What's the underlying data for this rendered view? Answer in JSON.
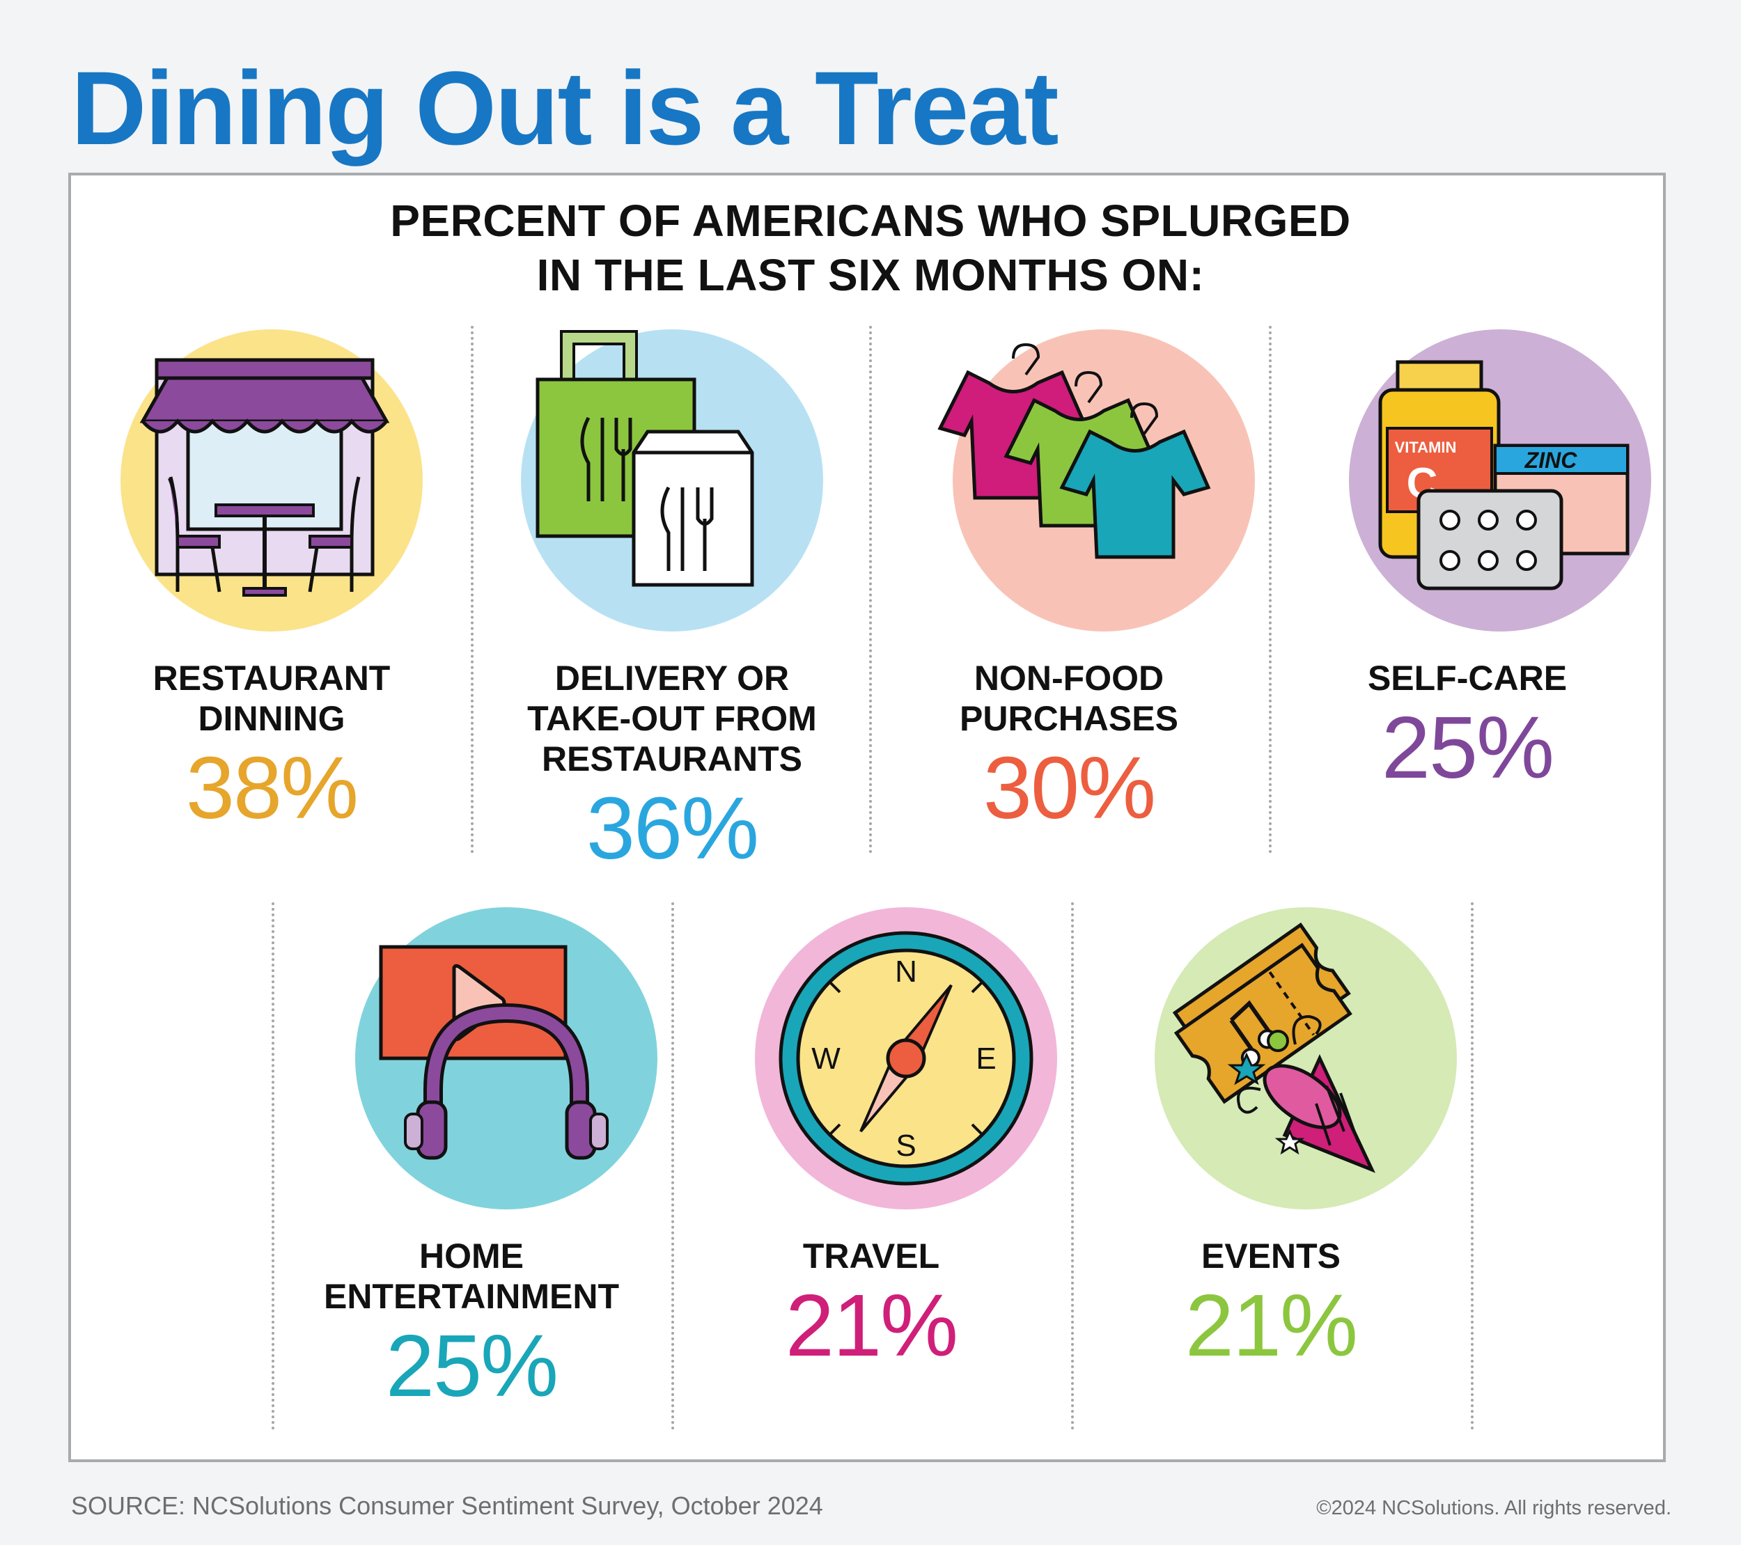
{
  "title": "Dining Out is a Treat",
  "heading": {
    "line1": "PERCENT OF AMERICANS WHO SPLURGED",
    "line2": "IN THE LAST SIX MONTHS ON:"
  },
  "chart_data": {
    "type": "table",
    "title": "PERCENT OF AMERICANS WHO SPLURGED IN THE LAST SIX MONTHS ON:",
    "categories": [
      "RESTAURANT DINNING",
      "DELIVERY OR TAKE-OUT FROM RESTAURANTS",
      "NON-FOOD PURCHASES",
      "SELF-CARE",
      "HOME ENTERTAINMENT",
      "TRAVEL",
      "EVENTS"
    ],
    "values": [
      38,
      36,
      30,
      25,
      25,
      21,
      21
    ],
    "unit": "%"
  },
  "items": [
    {
      "label": "RESTAURANT\nDINNING",
      "value": "38%",
      "color": "#e6a52b",
      "circle": "#fbe38a",
      "icon": "restaurant-storefront-icon"
    },
    {
      "label": "DELIVERY OR\nTAKE-OUT FROM\nRESTAURANTS",
      "value": "36%",
      "color": "#2aa6df",
      "circle": "#b7e1f3",
      "icon": "takeout-bags-icon"
    },
    {
      "label": "NON-FOOD\nPURCHASES",
      "value": "30%",
      "color": "#ec5e3f",
      "circle": "#f8c3b6",
      "icon": "tshirts-icon"
    },
    {
      "label": "SELF-CARE",
      "value": "25%",
      "color": "#7f479a",
      "circle": "#cdb0d6",
      "icon": "vitamins-icon"
    },
    {
      "label": "HOME\nENTERTAINMENT",
      "value": "25%",
      "color": "#19a6b8",
      "circle": "#80d3dc",
      "icon": "video-headphones-icon"
    },
    {
      "label": "TRAVEL",
      "value": "21%",
      "color": "#cf1f79",
      "circle": "#f2b6d8",
      "icon": "compass-icon"
    },
    {
      "label": "EVENTS",
      "value": "21%",
      "color": "#8cc63f",
      "circle": "#d5eab5",
      "icon": "tickets-party-icon"
    }
  ],
  "icon_text": {
    "vitamin": "VITAMIN",
    "vitamin_letter": "C",
    "zinc": "ZINC",
    "compass": {
      "n": "N",
      "e": "E",
      "s": "S",
      "w": "W"
    }
  },
  "footer": {
    "source": "SOURCE: NCSolutions Consumer Sentiment Survey, October 2024",
    "copyright": "©2024 NCSolutions. All rights reserved."
  }
}
